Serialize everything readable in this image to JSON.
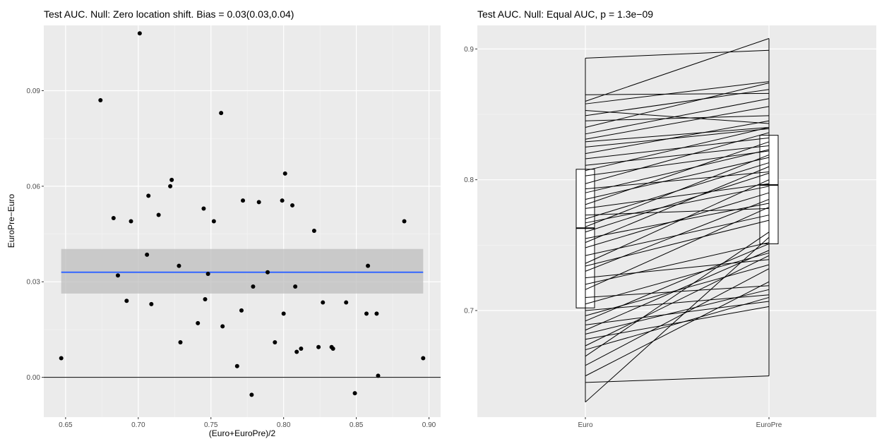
{
  "chart_data": [
    {
      "type": "scatter",
      "title": "Test AUC. Null: Zero location shift. Bias = 0.03(0.03,0.04)",
      "xlabel": "(Euro+EuroPre)/2",
      "ylabel": "EuroPre−Euro",
      "xlim": [
        0.635,
        0.908
      ],
      "ylim": [
        -0.0125,
        0.1105
      ],
      "x_ticks": [
        0.65,
        0.7,
        0.75,
        0.8,
        0.85,
        0.9
      ],
      "x_tick_labels": [
        "0.65",
        "0.70",
        "0.75",
        "0.80",
        "0.85",
        "0.90"
      ],
      "y_ticks": [
        0.0,
        0.03,
        0.06,
        0.09
      ],
      "y_tick_labels": [
        "0.00",
        "0.03",
        "0.06",
        "0.09"
      ],
      "grid": true,
      "reference_line_y": 0,
      "mean_line": {
        "y": 0.033,
        "color": "#3366ff"
      },
      "confidence_band": {
        "ymin": 0.0263,
        "ymax": 0.0403,
        "color": "#bdbdbd"
      },
      "points": [
        {
          "x": 0.647,
          "y": 0.006
        },
        {
          "x": 0.674,
          "y": 0.087
        },
        {
          "x": 0.683,
          "y": 0.05
        },
        {
          "x": 0.686,
          "y": 0.032
        },
        {
          "x": 0.692,
          "y": 0.024
        },
        {
          "x": 0.695,
          "y": 0.049
        },
        {
          "x": 0.701,
          "y": 0.108
        },
        {
          "x": 0.706,
          "y": 0.0385
        },
        {
          "x": 0.707,
          "y": 0.057
        },
        {
          "x": 0.709,
          "y": 0.023
        },
        {
          "x": 0.714,
          "y": 0.051
        },
        {
          "x": 0.722,
          "y": 0.06
        },
        {
          "x": 0.723,
          "y": 0.062
        },
        {
          "x": 0.728,
          "y": 0.035
        },
        {
          "x": 0.729,
          "y": 0.011
        },
        {
          "x": 0.741,
          "y": 0.017
        },
        {
          "x": 0.745,
          "y": 0.053
        },
        {
          "x": 0.746,
          "y": 0.0245
        },
        {
          "x": 0.748,
          "y": 0.0325
        },
        {
          "x": 0.752,
          "y": 0.049
        },
        {
          "x": 0.757,
          "y": 0.083
        },
        {
          "x": 0.758,
          "y": 0.016
        },
        {
          "x": 0.768,
          "y": 0.0035
        },
        {
          "x": 0.771,
          "y": 0.021
        },
        {
          "x": 0.772,
          "y": 0.0555
        },
        {
          "x": 0.778,
          "y": -0.0055
        },
        {
          "x": 0.779,
          "y": 0.0285
        },
        {
          "x": 0.783,
          "y": 0.055
        },
        {
          "x": 0.789,
          "y": 0.033
        },
        {
          "x": 0.794,
          "y": 0.011
        },
        {
          "x": 0.799,
          "y": 0.0555
        },
        {
          "x": 0.8,
          "y": 0.02
        },
        {
          "x": 0.801,
          "y": 0.064
        },
        {
          "x": 0.806,
          "y": 0.054
        },
        {
          "x": 0.808,
          "y": 0.0285
        },
        {
          "x": 0.809,
          "y": 0.008
        },
        {
          "x": 0.812,
          "y": 0.009
        },
        {
          "x": 0.821,
          "y": 0.046
        },
        {
          "x": 0.824,
          "y": 0.0095
        },
        {
          "x": 0.827,
          "y": 0.0235
        },
        {
          "x": 0.833,
          "y": 0.0095
        },
        {
          "x": 0.834,
          "y": 0.009
        },
        {
          "x": 0.843,
          "y": 0.0235
        },
        {
          "x": 0.849,
          "y": -0.005
        },
        {
          "x": 0.857,
          "y": 0.02
        },
        {
          "x": 0.858,
          "y": 0.035
        },
        {
          "x": 0.864,
          "y": 0.02
        },
        {
          "x": 0.865,
          "y": 0.0005
        },
        {
          "x": 0.883,
          "y": 0.049
        },
        {
          "x": 0.896,
          "y": 0.006
        }
      ]
    },
    {
      "type": "box",
      "title": "Test AUC. Null: Equal AUC,  p = 1.3e−09",
      "xlabel": "",
      "ylabel": "",
      "categories": [
        "Euro",
        "EuroPre"
      ],
      "ylim": [
        0.6185,
        0.918
      ],
      "y_ticks": [
        0.7,
        0.8,
        0.9
      ],
      "y_tick_labels": [
        "0.7",
        "0.8",
        "0.9"
      ],
      "grid": true,
      "boxes": [
        {
          "name": "Euro",
          "q1": 0.702,
          "median": 0.763,
          "q3": 0.808
        },
        {
          "name": "EuroPre",
          "q1": 0.751,
          "median": 0.796,
          "q3": 0.834
        }
      ],
      "paired_lines": [
        [
          0.63,
          0.756
        ],
        [
          0.645,
          0.65
        ],
        [
          0.65,
          0.722
        ],
        [
          0.658,
          0.732
        ],
        [
          0.665,
          0.76
        ],
        [
          0.67,
          0.71
        ],
        [
          0.673,
          0.742
        ],
        [
          0.678,
          0.703
        ],
        [
          0.682,
          0.716
        ],
        [
          0.685,
          0.746
        ],
        [
          0.689,
          0.707
        ],
        [
          0.692,
          0.751
        ],
        [
          0.696,
          0.735
        ],
        [
          0.7,
          0.712
        ],
        [
          0.705,
          0.744
        ],
        [
          0.71,
          0.719
        ],
        [
          0.716,
          0.779
        ],
        [
          0.72,
          0.752
        ],
        [
          0.725,
          0.739
        ],
        [
          0.73,
          0.785
        ],
        [
          0.734,
          0.769
        ],
        [
          0.736,
          0.8
        ],
        [
          0.742,
          0.773
        ],
        [
          0.748,
          0.79
        ],
        [
          0.752,
          0.81
        ],
        [
          0.755,
          0.782
        ],
        [
          0.76,
          0.805
        ],
        [
          0.764,
          0.819
        ],
        [
          0.767,
          0.795
        ],
        [
          0.77,
          0.813
        ],
        [
          0.773,
          0.778
        ],
        [
          0.778,
          0.797
        ],
        [
          0.781,
          0.829
        ],
        [
          0.785,
          0.817
        ],
        [
          0.79,
          0.823
        ],
        [
          0.793,
          0.806
        ],
        [
          0.797,
          0.836
        ],
        [
          0.803,
          0.822
        ],
        [
          0.807,
          0.84
        ],
        [
          0.811,
          0.826
        ],
        [
          0.816,
          0.832
        ],
        [
          0.82,
          0.845
        ],
        [
          0.825,
          0.839
        ],
        [
          0.829,
          0.84
        ],
        [
          0.831,
          0.856
        ],
        [
          0.835,
          0.862
        ],
        [
          0.84,
          0.874
        ],
        [
          0.845,
          0.849
        ],
        [
          0.849,
          0.869
        ],
        [
          0.853,
          0.843
        ],
        [
          0.858,
          0.875
        ],
        [
          0.86,
          0.908
        ],
        [
          0.865,
          0.866
        ],
        [
          0.893,
          0.899
        ]
      ]
    }
  ]
}
